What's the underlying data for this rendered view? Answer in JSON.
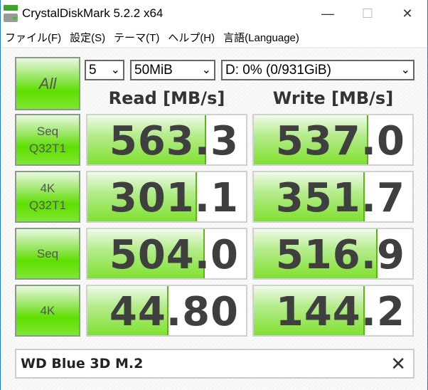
{
  "window": {
    "title": "CrystalDiskMark 5.2.2 x64",
    "minimize": "—",
    "maximize": "☐",
    "close": "✕"
  },
  "menu": [
    "ファイル(F)",
    "設定(S)",
    "テーマ(T)",
    "ヘルプ(H)",
    "言語(Language)"
  ],
  "controls": {
    "all_label": "All",
    "count": "5",
    "size": "50MiB",
    "drive": "D: 0% (0/931GiB)",
    "chevron": "⌄"
  },
  "headers": {
    "read": "Read [MB/s]",
    "write": "Write [MB/s]"
  },
  "rows": [
    {
      "label1": "Seq",
      "label2": "Q32T1",
      "read": "563.3",
      "write": "537.0",
      "read_fill": 0.75,
      "write_fill": 0.72
    },
    {
      "label1": "4K",
      "label2": "Q32T1",
      "read": "301.1",
      "write": "351.7",
      "read_fill": 0.69,
      "write_fill": 0.7
    },
    {
      "label1": "Seq",
      "label2": "",
      "read": "504.0",
      "write": "516.9",
      "read_fill": 0.74,
      "write_fill": 0.78
    },
    {
      "label1": "4K",
      "label2": "",
      "read": "44.80",
      "write": "144.2",
      "read_fill": 0.51,
      "write_fill": 0.7
    }
  ],
  "comment": {
    "value": "WD Blue 3D M.2",
    "clear": "✕"
  }
}
